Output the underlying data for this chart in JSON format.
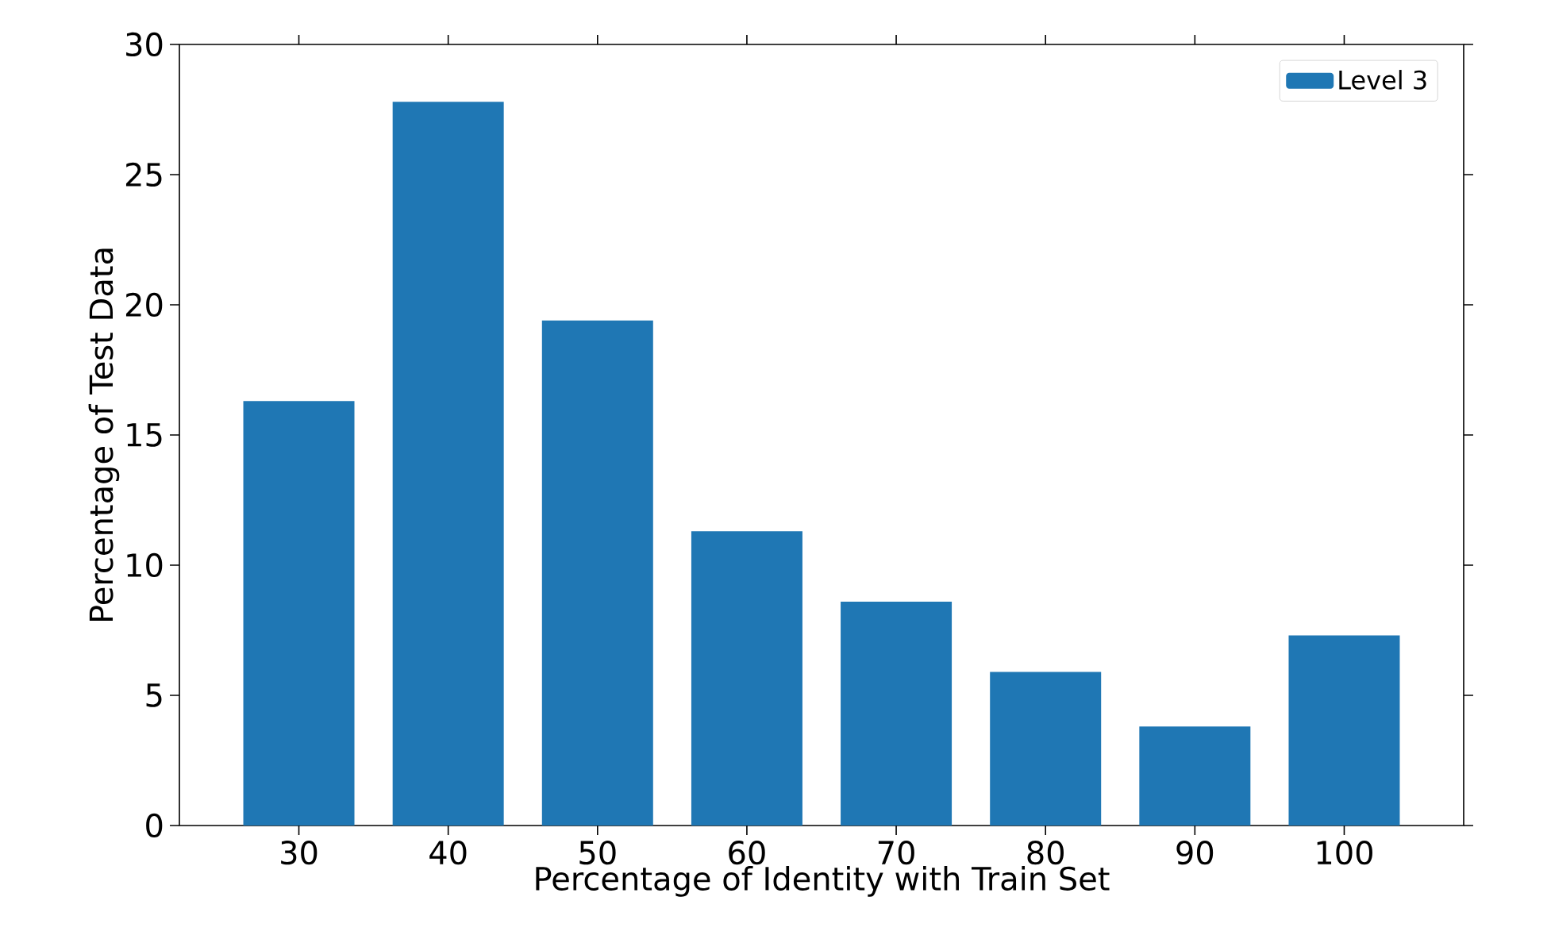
{
  "chart_data": {
    "type": "bar",
    "xlabel": "Percentage of Identity with Train Set",
    "ylabel": "Percentage of Test Data",
    "categories": [
      "30",
      "40",
      "50",
      "60",
      "70",
      "80",
      "90",
      "100"
    ],
    "series": [
      {
        "name": "Level 3",
        "color": "#1f77b4",
        "values": [
          16.3,
          27.8,
          19.4,
          11.3,
          8.6,
          5.9,
          3.8,
          7.3
        ]
      }
    ],
    "ylim": [
      0,
      30
    ],
    "yticks": [
      0,
      5,
      10,
      15,
      20,
      25,
      30
    ],
    "legend": "top right"
  }
}
